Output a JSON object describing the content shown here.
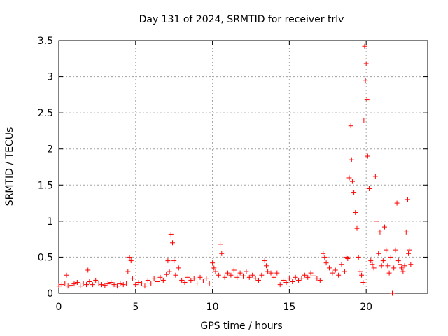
{
  "chart_data": {
    "type": "scatter",
    "title": "Day 131 of 2024, SRMTID for receiver trlv",
    "xlabel": "GPS time / hours",
    "ylabel": "SRMTID / TECUs",
    "xlim": [
      0,
      24
    ],
    "ylim": [
      0,
      3.5
    ],
    "xticks": [
      0,
      5,
      10,
      15,
      20
    ],
    "xtick_labels": [
      "0",
      "5",
      "10",
      "15",
      "20"
    ],
    "yticks": [
      0,
      0.5,
      1,
      1.5,
      2,
      2.5,
      3,
      3.5
    ],
    "ytick_labels": [
      "0",
      "0.5",
      "1",
      "1.5",
      "2",
      "2.5",
      "3",
      "3.5"
    ],
    "grid": true,
    "marker": "+",
    "series": [
      {
        "name": "SRMTID",
        "color": "#ff0000",
        "x": [
          0.0,
          0.2,
          0.4,
          0.5,
          0.6,
          0.8,
          1.0,
          1.2,
          1.4,
          1.6,
          1.8,
          1.9,
          2.0,
          2.2,
          2.4,
          2.6,
          2.8,
          3.0,
          3.2,
          3.4,
          3.6,
          3.8,
          4.0,
          4.2,
          4.4,
          4.5,
          4.6,
          4.7,
          4.8,
          5.0,
          5.2,
          5.4,
          5.6,
          5.8,
          6.0,
          6.2,
          6.4,
          6.6,
          6.8,
          7.0,
          7.1,
          7.2,
          7.3,
          7.4,
          7.5,
          7.6,
          7.8,
          8.0,
          8.2,
          8.4,
          8.6,
          8.8,
          9.0,
          9.2,
          9.4,
          9.6,
          9.8,
          10.0,
          10.1,
          10.2,
          10.4,
          10.5,
          10.6,
          10.8,
          11.0,
          11.2,
          11.4,
          11.6,
          11.8,
          12.0,
          12.2,
          12.4,
          12.6,
          12.8,
          13.0,
          13.2,
          13.4,
          13.5,
          13.6,
          13.8,
          14.0,
          14.2,
          14.4,
          14.6,
          14.8,
          15.0,
          15.2,
          15.4,
          15.6,
          15.8,
          16.0,
          16.2,
          16.4,
          16.6,
          16.8,
          17.0,
          17.2,
          17.3,
          17.4,
          17.6,
          17.8,
          18.0,
          18.2,
          18.4,
          18.6,
          18.7,
          18.8,
          18.9,
          19.0,
          19.05,
          19.1,
          19.2,
          19.3,
          19.4,
          19.5,
          19.6,
          19.7,
          19.8,
          19.85,
          19.9,
          19.95,
          20.0,
          20.05,
          20.1,
          20.2,
          20.3,
          20.4,
          20.5,
          20.6,
          20.7,
          20.8,
          20.9,
          21.0,
          21.1,
          21.2,
          21.3,
          21.4,
          21.5,
          21.6,
          21.7,
          21.8,
          21.9,
          22.0,
          22.1,
          22.2,
          22.3,
          22.4,
          22.5,
          22.6,
          22.7,
          22.75,
          22.8,
          22.9
        ],
        "y": [
          0.1,
          0.12,
          0.14,
          0.25,
          0.1,
          0.11,
          0.13,
          0.15,
          0.1,
          0.14,
          0.12,
          0.32,
          0.16,
          0.12,
          0.18,
          0.14,
          0.12,
          0.11,
          0.13,
          0.15,
          0.12,
          0.1,
          0.13,
          0.12,
          0.14,
          0.3,
          0.5,
          0.45,
          0.2,
          0.12,
          0.15,
          0.14,
          0.1,
          0.18,
          0.14,
          0.2,
          0.16,
          0.22,
          0.18,
          0.26,
          0.45,
          0.3,
          0.82,
          0.7,
          0.45,
          0.25,
          0.35,
          0.18,
          0.15,
          0.22,
          0.18,
          0.2,
          0.14,
          0.22,
          0.17,
          0.2,
          0.14,
          0.42,
          0.35,
          0.3,
          0.25,
          0.68,
          0.55,
          0.22,
          0.28,
          0.25,
          0.32,
          0.22,
          0.28,
          0.24,
          0.3,
          0.22,
          0.25,
          0.2,
          0.18,
          0.25,
          0.45,
          0.38,
          0.3,
          0.28,
          0.22,
          0.28,
          0.12,
          0.18,
          0.15,
          0.2,
          0.16,
          0.22,
          0.18,
          0.2,
          0.25,
          0.22,
          0.28,
          0.24,
          0.2,
          0.18,
          0.55,
          0.5,
          0.42,
          0.35,
          0.28,
          0.32,
          0.25,
          0.4,
          0.3,
          0.5,
          0.48,
          1.6,
          2.32,
          1.85,
          1.55,
          1.4,
          1.12,
          0.9,
          0.5,
          0.3,
          0.25,
          0.15,
          2.4,
          3.42,
          2.95,
          3.18,
          2.68,
          1.9,
          1.45,
          0.45,
          0.4,
          0.35,
          1.62,
          1.0,
          0.55,
          0.85,
          0.38,
          0.45,
          0.92,
          0.6,
          0.38,
          0.28,
          0.5,
          0.0,
          0.35,
          0.6,
          1.25,
          0.45,
          0.4,
          0.35,
          0.3,
          0.38,
          0.85,
          1.3,
          0.55,
          0.6,
          0.4
        ]
      }
    ]
  }
}
